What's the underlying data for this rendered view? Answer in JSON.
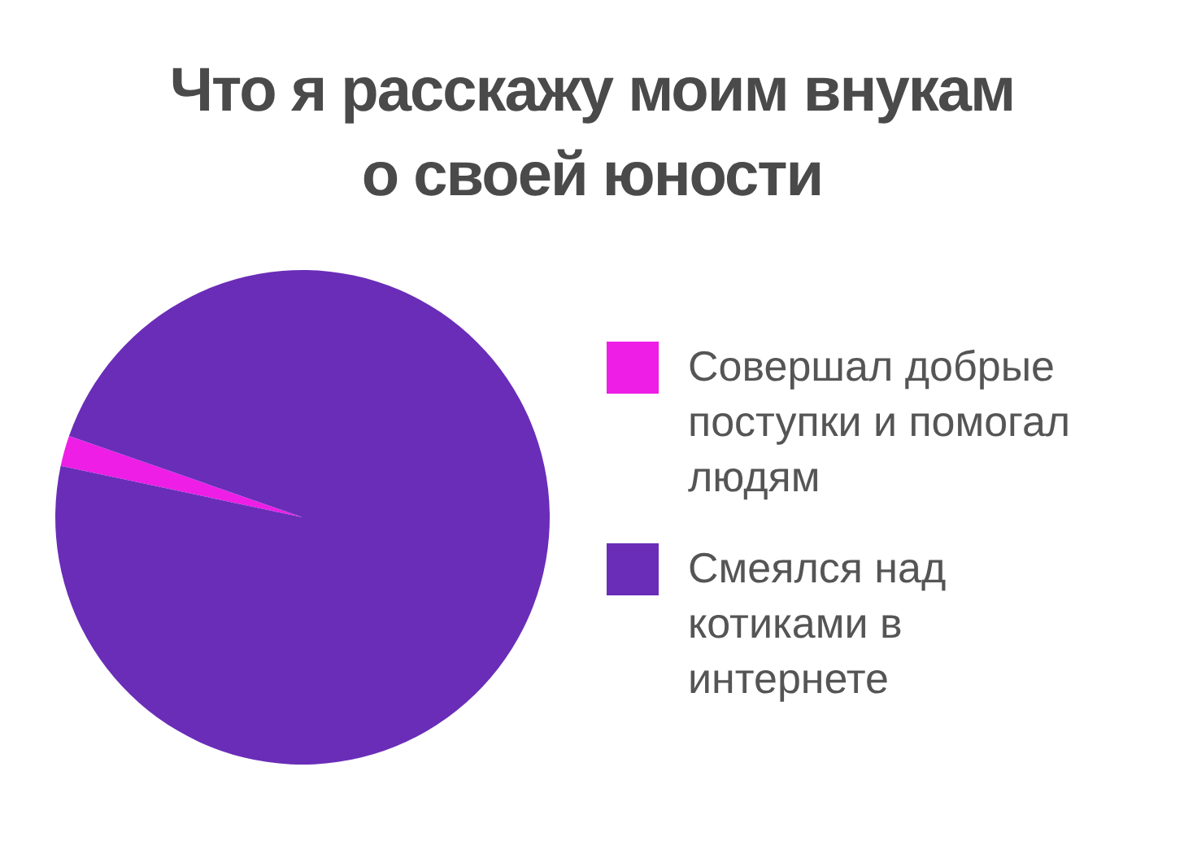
{
  "chart_data": {
    "type": "pie",
    "title": "Что я расскажу моим внукам о своей юности",
    "categories": [
      "Совершал добрые поступки и помогал людям",
      "Смеялся над котиками в интернете"
    ],
    "values": [
      2,
      98
    ],
    "colors": [
      "#ee1ee6",
      "#6a2db8"
    ],
    "legend": "right"
  }
}
